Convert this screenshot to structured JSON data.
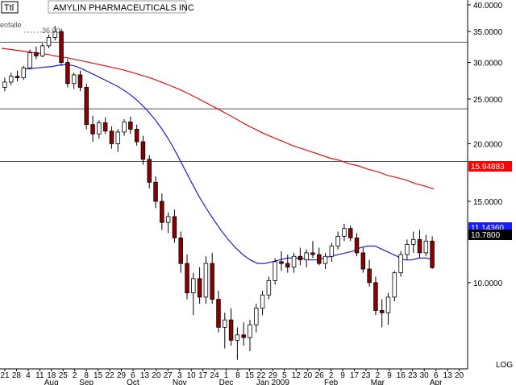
{
  "header": {
    "symbol_box": "Ttl",
    "title": "AMYLIN PHARMACEUTICALS INC"
  },
  "annotations": {
    "partial_label": "enfalle",
    "peak_price": "36.00"
  },
  "scale_label": "LOG",
  "price_badges": {
    "ma200": "15.94883",
    "ma50": "11.14360",
    "last": "10.7800"
  },
  "colors": {
    "ma200": "#e01010",
    "ma50": "#2020d0",
    "candle_up": "#ffffff",
    "candle_down": "#8b0000",
    "badge_red": "#ff0000",
    "badge_blue": "#1a1aff",
    "badge_black": "#000000"
  },
  "chart_data": {
    "type": "candlestick",
    "title": "AMYLIN PHARMACEUTICALS INC",
    "y_scale": "log",
    "ylim": [
      6.5,
      40
    ],
    "y_ticks": [
      {
        "value": 40,
        "label": "40.0000"
      },
      {
        "value": 35,
        "label": "35.0000"
      },
      {
        "value": 30,
        "label": "30.0000"
      },
      {
        "value": 25,
        "label": "25.0000"
      },
      {
        "value": 20,
        "label": "20.0000"
      },
      {
        "value": 15,
        "label": "15.0000"
      },
      {
        "value": 10,
        "label": "10.0000"
      }
    ],
    "x_ticks": [
      "21",
      "28",
      "4",
      "11",
      "18",
      "25",
      "2",
      "8",
      "15",
      "22",
      "29",
      "6",
      "13",
      "20",
      "27",
      "3",
      "10",
      "17",
      "24",
      "1",
      "8",
      "15",
      "22",
      "29",
      "5",
      "12",
      "20",
      "26",
      "2",
      "9",
      "17",
      "23",
      "2",
      "9",
      "16",
      "23",
      "30",
      "6",
      "13",
      "20"
    ],
    "months": [
      "Aug",
      "Sep",
      "Oct",
      "Nov",
      "Dec",
      "Jan 2009",
      "Feb",
      "Mar",
      "Apr"
    ],
    "horizontal_lines": [
      33.2,
      23.8,
      18.3
    ],
    "ma50": [
      29.0,
      29.1,
      29.2,
      29.3,
      29.4,
      29.6,
      29.7,
      29.5,
      29.1,
      28.6,
      28.1,
      27.6,
      27.1,
      26.6,
      26.0,
      25.3,
      24.5,
      23.6,
      22.6,
      21.5,
      20.3,
      19.0,
      17.7,
      16.5,
      15.4,
      14.5,
      13.7,
      13.0,
      12.4,
      11.9,
      11.5,
      11.2,
      11.0,
      11.0,
      11.1,
      11.2,
      11.3,
      11.3,
      11.3,
      11.2,
      11.2,
      11.3,
      11.4,
      11.5,
      11.6,
      11.7,
      11.9,
      12.0,
      12.0,
      11.8,
      11.6,
      11.4,
      11.2,
      11.2,
      11.3,
      11.3,
      11.2
    ],
    "ma200": [
      32.2,
      32.0,
      31.8,
      31.6,
      31.4,
      31.2,
      30.9,
      30.7,
      30.4,
      30.1,
      29.8,
      29.5,
      29.2,
      28.9,
      28.5,
      28.1,
      27.7,
      27.2,
      26.7,
      26.2,
      25.6,
      25.0,
      24.4,
      23.8,
      23.2,
      22.6,
      22.0,
      21.5,
      21.0,
      20.6,
      20.2,
      19.8,
      19.5,
      19.2,
      18.9,
      18.6,
      18.4,
      18.1,
      17.9,
      17.6,
      17.4,
      17.1,
      16.9,
      16.7,
      16.4,
      16.2,
      15.95
    ],
    "candles": [
      {
        "o": 26.5,
        "h": 27.8,
        "l": 26.0,
        "c": 27.2
      },
      {
        "o": 27.2,
        "h": 28.5,
        "l": 26.8,
        "c": 28.0
      },
      {
        "o": 28.0,
        "h": 28.8,
        "l": 27.3,
        "c": 27.8
      },
      {
        "o": 27.8,
        "h": 29.5,
        "l": 27.5,
        "c": 29.2
      },
      {
        "o": 29.2,
        "h": 32.0,
        "l": 29.0,
        "c": 31.5
      },
      {
        "o": 31.5,
        "h": 32.5,
        "l": 30.5,
        "c": 31.0
      },
      {
        "o": 31.0,
        "h": 33.0,
        "l": 30.8,
        "c": 32.6
      },
      {
        "o": 32.6,
        "h": 34.5,
        "l": 32.2,
        "c": 34.0
      },
      {
        "o": 34.0,
        "h": 36.0,
        "l": 33.5,
        "c": 35.0
      },
      {
        "o": 35.0,
        "h": 35.5,
        "l": 29.5,
        "c": 30.0
      },
      {
        "o": 30.0,
        "h": 30.5,
        "l": 26.5,
        "c": 27.0
      },
      {
        "o": 27.0,
        "h": 28.5,
        "l": 26.3,
        "c": 28.2
      },
      {
        "o": 28.2,
        "h": 28.8,
        "l": 26.0,
        "c": 26.5
      },
      {
        "o": 26.5,
        "h": 27.0,
        "l": 21.5,
        "c": 22.0
      },
      {
        "o": 22.0,
        "h": 23.0,
        "l": 20.2,
        "c": 21.0
      },
      {
        "o": 21.0,
        "h": 22.5,
        "l": 20.5,
        "c": 22.2
      },
      {
        "o": 22.2,
        "h": 22.8,
        "l": 21.0,
        "c": 21.3
      },
      {
        "o": 21.3,
        "h": 21.8,
        "l": 19.5,
        "c": 20.0
      },
      {
        "o": 20.0,
        "h": 21.5,
        "l": 19.2,
        "c": 21.2
      },
      {
        "o": 21.2,
        "h": 22.6,
        "l": 20.8,
        "c": 22.3
      },
      {
        "o": 22.3,
        "h": 22.9,
        "l": 21.0,
        "c": 21.5
      },
      {
        "o": 21.5,
        "h": 22.0,
        "l": 19.8,
        "c": 20.2
      },
      {
        "o": 20.2,
        "h": 20.8,
        "l": 18.0,
        "c": 18.5
      },
      {
        "o": 18.5,
        "h": 18.9,
        "l": 16.0,
        "c": 16.5
      },
      {
        "o": 16.5,
        "h": 17.0,
        "l": 14.5,
        "c": 15.0
      },
      {
        "o": 15.0,
        "h": 15.6,
        "l": 13.0,
        "c": 13.5
      },
      {
        "o": 13.5,
        "h": 14.2,
        "l": 12.8,
        "c": 13.9
      },
      {
        "o": 13.9,
        "h": 14.4,
        "l": 12.2,
        "c": 12.5
      },
      {
        "o": 12.5,
        "h": 12.9,
        "l": 10.5,
        "c": 11.0
      },
      {
        "o": 11.0,
        "h": 11.5,
        "l": 9.2,
        "c": 9.5
      },
      {
        "o": 9.5,
        "h": 10.5,
        "l": 8.5,
        "c": 10.2
      },
      {
        "o": 10.2,
        "h": 10.8,
        "l": 9.0,
        "c": 9.3
      },
      {
        "o": 9.3,
        "h": 11.4,
        "l": 9.0,
        "c": 11.0
      },
      {
        "o": 11.0,
        "h": 11.6,
        "l": 9.0,
        "c": 9.2
      },
      {
        "o": 9.2,
        "h": 9.6,
        "l": 7.8,
        "c": 8.0
      },
      {
        "o": 8.0,
        "h": 8.6,
        "l": 7.2,
        "c": 8.3
      },
      {
        "o": 8.3,
        "h": 8.8,
        "l": 7.3,
        "c": 7.5
      },
      {
        "o": 7.5,
        "h": 8.0,
        "l": 6.8,
        "c": 7.7
      },
      {
        "o": 7.7,
        "h": 8.2,
        "l": 7.3,
        "c": 7.6
      },
      {
        "o": 7.6,
        "h": 8.3,
        "l": 7.1,
        "c": 8.1
      },
      {
        "o": 8.1,
        "h": 9.0,
        "l": 7.8,
        "c": 8.8
      },
      {
        "o": 8.8,
        "h": 9.6,
        "l": 8.5,
        "c": 9.4
      },
      {
        "o": 9.4,
        "h": 10.3,
        "l": 9.2,
        "c": 10.1
      },
      {
        "o": 10.1,
        "h": 11.3,
        "l": 9.9,
        "c": 11.1
      },
      {
        "o": 11.1,
        "h": 11.7,
        "l": 10.6,
        "c": 11.0
      },
      {
        "o": 11.0,
        "h": 11.5,
        "l": 10.5,
        "c": 10.8
      },
      {
        "o": 10.8,
        "h": 11.6,
        "l": 10.5,
        "c": 11.4
      },
      {
        "o": 11.4,
        "h": 11.9,
        "l": 10.9,
        "c": 11.2
      },
      {
        "o": 11.2,
        "h": 11.8,
        "l": 10.8,
        "c": 11.6
      },
      {
        "o": 11.6,
        "h": 12.3,
        "l": 11.3,
        "c": 11.5
      },
      {
        "o": 11.5,
        "h": 11.9,
        "l": 10.9,
        "c": 11.0
      },
      {
        "o": 11.0,
        "h": 11.6,
        "l": 10.7,
        "c": 11.4
      },
      {
        "o": 11.4,
        "h": 12.2,
        "l": 11.1,
        "c": 12.0
      },
      {
        "o": 12.0,
        "h": 12.9,
        "l": 11.8,
        "c": 12.6
      },
      {
        "o": 12.6,
        "h": 13.4,
        "l": 12.3,
        "c": 13.1
      },
      {
        "o": 13.1,
        "h": 13.3,
        "l": 12.3,
        "c": 12.5
      },
      {
        "o": 12.5,
        "h": 12.8,
        "l": 11.4,
        "c": 11.6
      },
      {
        "o": 11.6,
        "h": 11.9,
        "l": 10.5,
        "c": 10.7
      },
      {
        "o": 10.7,
        "h": 11.2,
        "l": 9.8,
        "c": 10.0
      },
      {
        "o": 10.0,
        "h": 10.3,
        "l": 8.5,
        "c": 8.7
      },
      {
        "o": 8.7,
        "h": 9.2,
        "l": 8.0,
        "c": 8.6
      },
      {
        "o": 8.6,
        "h": 9.5,
        "l": 8.1,
        "c": 9.3
      },
      {
        "o": 9.3,
        "h": 10.6,
        "l": 9.1,
        "c": 10.5
      },
      {
        "o": 10.5,
        "h": 11.7,
        "l": 10.3,
        "c": 11.5
      },
      {
        "o": 11.5,
        "h": 12.4,
        "l": 11.2,
        "c": 12.1
      },
      {
        "o": 12.1,
        "h": 12.9,
        "l": 11.6,
        "c": 12.4
      },
      {
        "o": 12.4,
        "h": 13.0,
        "l": 11.3,
        "c": 11.6
      },
      {
        "o": 11.6,
        "h": 12.7,
        "l": 11.4,
        "c": 12.3
      },
      {
        "o": 12.3,
        "h": 12.6,
        "l": 10.7,
        "c": 10.78
      }
    ]
  }
}
